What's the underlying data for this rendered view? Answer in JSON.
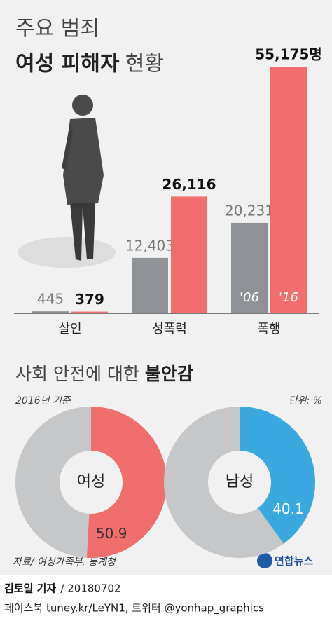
{
  "chart_data": [
    {
      "type": "bar",
      "title": "주요 범죄",
      "title_bold": "여성 피해자",
      "title_rest": "현황",
      "categories": [
        "살인",
        "성폭력",
        "폭행"
      ],
      "series": [
        {
          "name": "'06",
          "color": "#8e9297",
          "values": [
            445,
            12403,
            20231
          ],
          "value_labels": [
            "445",
            "12,403",
            "20,231"
          ]
        },
        {
          "name": "'16",
          "color": "#f06e6b",
          "values": [
            379,
            26116,
            55175
          ],
          "value_labels": [
            "379",
            "26,116",
            "55,175명"
          ]
        }
      ]
    },
    {
      "type": "donut",
      "center_label": "여성",
      "values": [
        50.9
      ],
      "color": "#f06e6b"
    },
    {
      "type": "donut",
      "center_label": "남성",
      "values": [
        40.1
      ],
      "color": "#3aa9df"
    }
  ],
  "section": {
    "title": "사회 안전에 대한",
    "title_bold": "불안감",
    "note": "2016년 기준",
    "unit": "단위: %"
  },
  "footer": {
    "source": "자료/ 여성가족부, 통계청",
    "logo": "연합뉴스",
    "author": "김토일 기자",
    "date": "/ 20180702",
    "social": "페이스북 tuney.kr/LeYN1, 트위터 @yonhap_graphics"
  }
}
